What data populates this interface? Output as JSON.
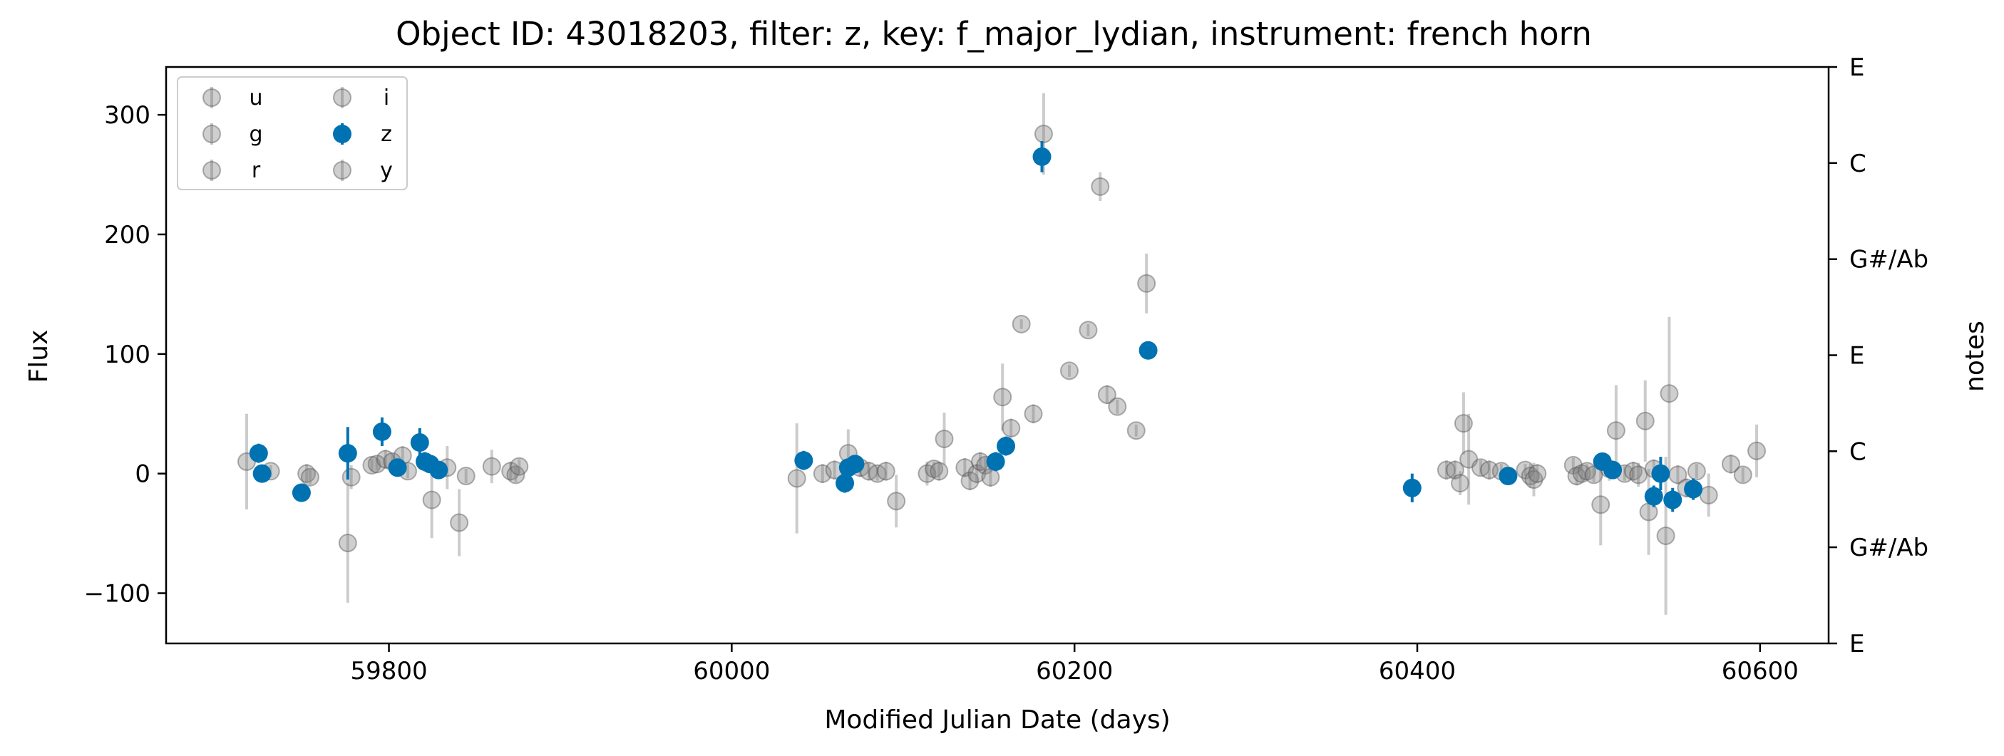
{
  "chart_data": {
    "type": "scatter",
    "title": "Object ID: 43018203, filter: z, key: f_major_lydian, instrument: french horn",
    "xlabel": "Modified Julian Date (days)",
    "ylabel": "Flux",
    "y2label": "notes",
    "xlim": [
      59670,
      60640
    ],
    "ylim": [
      -142,
      340
    ],
    "x_ticks": [
      59800,
      60000,
      60200,
      60400,
      60600
    ],
    "y_ticks": [
      -100,
      0,
      100,
      200,
      300
    ],
    "y_tick_labels": [
      "−100",
      "0",
      "100",
      "200",
      "300"
    ],
    "right_ticks": [
      {
        "value": -142,
        "label": "E"
      },
      {
        "value": -61.6,
        "label": "G#/Ab"
      },
      {
        "value": 18.7,
        "label": "C"
      },
      {
        "value": 99.0,
        "label": "E"
      },
      {
        "value": 179.3,
        "label": "G#/Ab"
      },
      {
        "value": 259.7,
        "label": "C"
      },
      {
        "value": 340,
        "label": "E"
      }
    ],
    "legend": {
      "location": "upper-left",
      "columns": 2,
      "entries": [
        "u",
        "g",
        "r",
        "i",
        "z",
        "y"
      ],
      "highlight": "z"
    },
    "colors": {
      "highlight": "#0072b2",
      "other": "#808080"
    },
    "series": [
      {
        "name": "z",
        "highlight": true,
        "points": [
          [
            59724,
            17,
            8
          ],
          [
            59726,
            0,
            5
          ],
          [
            59749,
            -16,
            5
          ],
          [
            59776,
            17,
            22
          ],
          [
            59796,
            35,
            12
          ],
          [
            59805,
            5,
            6
          ],
          [
            59818,
            26,
            12
          ],
          [
            59821,
            10,
            8
          ],
          [
            59824,
            8,
            6
          ],
          [
            59829,
            3,
            6
          ],
          [
            60042,
            11,
            8
          ],
          [
            60066,
            -8,
            8
          ],
          [
            60068,
            5,
            7
          ],
          [
            60072,
            8,
            6
          ],
          [
            60154,
            10,
            8
          ],
          [
            60160,
            23,
            8
          ],
          [
            60181,
            265,
            13
          ],
          [
            60243,
            103,
            5
          ],
          [
            60397,
            -12,
            12
          ],
          [
            60453,
            -2,
            6
          ],
          [
            60508,
            10,
            7
          ],
          [
            60514,
            3,
            5
          ],
          [
            60538,
            -19,
            9
          ],
          [
            60542,
            0,
            14
          ],
          [
            60549,
            -22,
            10
          ],
          [
            60561,
            -13,
            9
          ]
        ]
      },
      {
        "name": "other",
        "highlight": false,
        "points": [
          [
            59717,
            10,
            40
          ],
          [
            59731,
            2,
            5
          ],
          [
            59752,
            0,
            8
          ],
          [
            59754,
            -3,
            6
          ],
          [
            59776,
            -58,
            50
          ],
          [
            59778,
            -3,
            10
          ],
          [
            59790,
            7,
            5
          ],
          [
            59793,
            8,
            5
          ],
          [
            59798,
            12,
            8
          ],
          [
            59802,
            10,
            6
          ],
          [
            59808,
            15,
            8
          ],
          [
            59811,
            2,
            6
          ],
          [
            59825,
            -22,
            32
          ],
          [
            59834,
            5,
            18
          ],
          [
            59841,
            -41,
            28
          ],
          [
            59845,
            -2,
            6
          ],
          [
            59860,
            6,
            14
          ],
          [
            59871,
            2,
            8
          ],
          [
            59874,
            -1,
            6
          ],
          [
            59876,
            6,
            6
          ],
          [
            60038,
            -4,
            46
          ],
          [
            60053,
            0,
            8
          ],
          [
            60060,
            3,
            8
          ],
          [
            60068,
            17,
            20
          ],
          [
            60075,
            5,
            8
          ],
          [
            60080,
            2,
            8
          ],
          [
            60085,
            0,
            6
          ],
          [
            60090,
            2,
            8
          ],
          [
            60096,
            -23,
            22
          ],
          [
            60114,
            0,
            10
          ],
          [
            60118,
            4,
            6
          ],
          [
            60121,
            2,
            8
          ],
          [
            60124,
            29,
            22
          ],
          [
            60136,
            5,
            8
          ],
          [
            60139,
            -6,
            8
          ],
          [
            60143,
            0,
            8
          ],
          [
            60145,
            10,
            8
          ],
          [
            60148,
            7,
            6
          ],
          [
            60151,
            -3,
            8
          ],
          [
            60158,
            64,
            28
          ],
          [
            60163,
            38,
            8
          ],
          [
            60169,
            125,
            4
          ],
          [
            60176,
            50,
            8
          ],
          [
            60182,
            284,
            34
          ],
          [
            60197,
            86,
            5
          ],
          [
            60208,
            120,
            5
          ],
          [
            60215,
            240,
            12
          ],
          [
            60219,
            66,
            8
          ],
          [
            60225,
            56,
            6
          ],
          [
            60236,
            36,
            5
          ],
          [
            60242,
            159,
            25
          ],
          [
            60417,
            3,
            8
          ],
          [
            60422,
            3,
            8
          ],
          [
            60425,
            -8,
            10
          ],
          [
            60427,
            42,
            26
          ],
          [
            60430,
            12,
            38
          ],
          [
            60437,
            5,
            6
          ],
          [
            60442,
            3,
            8
          ],
          [
            60449,
            2,
            6
          ],
          [
            60463,
            3,
            5
          ],
          [
            60466,
            -2,
            10
          ],
          [
            60468,
            -5,
            14
          ],
          [
            60470,
            0,
            8
          ],
          [
            60491,
            7,
            6
          ],
          [
            60493,
            -2,
            8
          ],
          [
            60496,
            0,
            6
          ],
          [
            60499,
            2,
            6
          ],
          [
            60503,
            -1,
            6
          ],
          [
            60507,
            -26,
            34
          ],
          [
            60512,
            4,
            10
          ],
          [
            60516,
            36,
            38
          ],
          [
            60521,
            0,
            6
          ],
          [
            60526,
            2,
            8
          ],
          [
            60529,
            -1,
            10
          ],
          [
            60533,
            44,
            34
          ],
          [
            60535,
            -32,
            36
          ],
          [
            60538,
            4,
            8
          ],
          [
            60545,
            -52,
            66
          ],
          [
            60547,
            67,
            64
          ],
          [
            60552,
            -1,
            8
          ],
          [
            60557,
            -12,
            8
          ],
          [
            60563,
            2,
            6
          ],
          [
            60570,
            -18,
            18
          ],
          [
            60583,
            8,
            8
          ],
          [
            60590,
            -1,
            6
          ],
          [
            60598,
            19,
            22
          ]
        ]
      }
    ]
  }
}
